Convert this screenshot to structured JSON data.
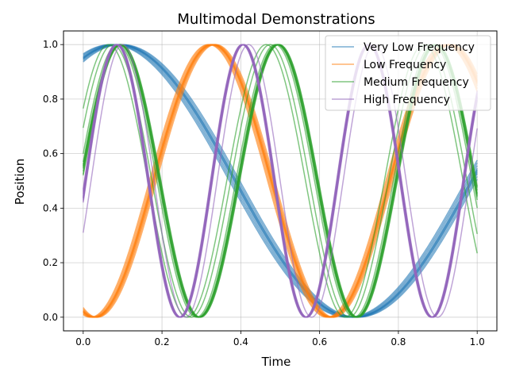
{
  "chart_data": {
    "type": "line",
    "title": "Multimodal Demonstrations",
    "xlabel": "Time",
    "ylabel": "Position",
    "xlim": [
      -0.05,
      1.05
    ],
    "ylim": [
      -0.05,
      1.05
    ],
    "xticks": [
      0.0,
      0.2,
      0.4,
      0.6,
      0.8,
      1.0
    ],
    "yticks": [
      0.0,
      0.2,
      0.4,
      0.6,
      0.8,
      1.0
    ],
    "xtick_labels": [
      "0.0",
      "0.2",
      "0.4",
      "0.6",
      "0.8",
      "1.0"
    ],
    "ytick_labels": [
      "0.0",
      "0.2",
      "0.4",
      "0.6",
      "0.8",
      "1.0"
    ],
    "grid": true,
    "legend_position": "top-right",
    "series": [
      {
        "name": "Very Low Frequency",
        "color": "#1f77b4",
        "frequency": 0.8333,
        "phases": [
          1.06,
          1.08,
          1.1,
          1.11,
          1.12,
          1.13,
          1.14,
          1.16,
          1.18,
          1.2
        ]
      },
      {
        "name": "Low Frequency",
        "color": "#ff7f0e",
        "frequency": 1.6667,
        "phases": [
          -1.95,
          -1.92,
          -1.9,
          -1.88,
          -1.87,
          -1.86,
          -1.85,
          -1.84,
          -1.82,
          -1.79,
          -1.76
        ]
      },
      {
        "name": "Medium Frequency",
        "color": "#2ca02c",
        "frequency": 2.5,
        "phases": [
          0.56,
          0.4,
          0.2,
          0.14,
          0.12,
          0.11,
          0.1,
          0.09,
          0.07,
          0.05,
          0.04
        ]
      },
      {
        "name": "High Frequency",
        "color": "#9467bd",
        "frequency": 3.125,
        "phases": [
          -0.39,
          -0.16,
          -0.15,
          -0.14,
          -0.13,
          -0.13,
          -0.12,
          -0.12,
          -0.11,
          -0.1,
          -0.09,
          -0.08,
          -0.07,
          -0.06
        ]
      }
    ]
  }
}
